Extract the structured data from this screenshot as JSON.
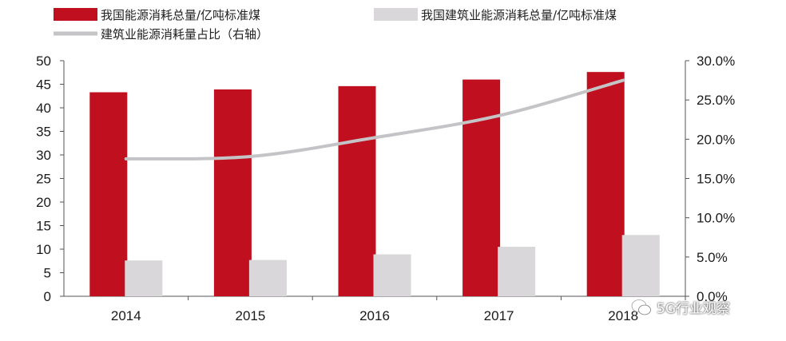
{
  "chart_data": {
    "type": "bar",
    "categories": [
      "2014",
      "2015",
      "2016",
      "2017",
      "2018"
    ],
    "series": [
      {
        "name": "我国能源消耗总量/亿吨标准煤",
        "kind": "bar",
        "axis": "left",
        "color": "#c0101f",
        "values": [
          43.3,
          43.9,
          44.6,
          46.0,
          47.6
        ]
      },
      {
        "name": "我国建筑业能源消耗总量/亿吨标准煤",
        "kind": "bar",
        "axis": "left",
        "color": "#d9d7d9",
        "values": [
          7.6,
          7.7,
          8.9,
          10.5,
          13.0
        ]
      },
      {
        "name": "建筑业能源消耗量占比（右轴）",
        "kind": "line",
        "axis": "right",
        "color": "#c4c3c6",
        "values": [
          17.5,
          17.8,
          20.2,
          23.0,
          27.5
        ]
      }
    ],
    "ylim": [
      0,
      50
    ],
    "yticks": [
      "0",
      "5",
      "10",
      "15",
      "20",
      "25",
      "30",
      "35",
      "40",
      "45",
      "50"
    ],
    "y2lim": [
      0,
      30
    ],
    "y2ticks": [
      "0.0%",
      "5.0%",
      "10.0%",
      "15.0%",
      "20.0%",
      "25.0%",
      "30.0%"
    ],
    "legend_position": "top",
    "grid": false
  },
  "watermark": {
    "text": "5G行业观察"
  }
}
